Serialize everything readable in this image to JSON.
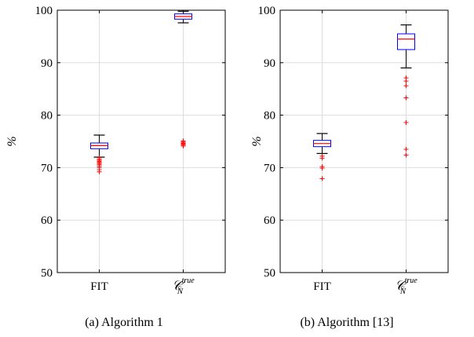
{
  "chart_data": [
    {
      "type": "box",
      "caption": "(a) Algorithm 1",
      "ylabel": "%",
      "ylim": [
        50,
        100
      ],
      "yticks": [
        50,
        60,
        70,
        80,
        90,
        100
      ],
      "categories": [
        "FIT",
        "C_N^true"
      ],
      "category_display": [
        {
          "main": "FIT",
          "sub": "",
          "sup": ""
        },
        {
          "main": "𝒞",
          "sub": "N",
          "sup": "true"
        }
      ],
      "grid": true,
      "boxes": [
        {
          "name": "FIT",
          "whisker_low": 72.0,
          "q1": 73.6,
          "median": 74.2,
          "q3": 74.7,
          "whisker_high": 76.2,
          "outliers": [
            71.9,
            71.6,
            71.4,
            71.2,
            71.0,
            70.8,
            70.6,
            70.3,
            70.0,
            69.6,
            69.2
          ]
        },
        {
          "name": "C_N^true",
          "whisker_low": 97.6,
          "q1": 98.3,
          "median": 98.8,
          "q3": 99.3,
          "whisker_high": 99.8,
          "outliers": [
            75.1,
            74.9,
            74.7,
            74.6,
            74.5,
            74.3,
            74.1
          ]
        }
      ]
    },
    {
      "type": "box",
      "caption": "(b) Algorithm [13]",
      "ylabel": "%",
      "ylim": [
        50,
        100
      ],
      "yticks": [
        50,
        60,
        70,
        80,
        90,
        100
      ],
      "categories": [
        "FIT",
        "C_N^true"
      ],
      "category_display": [
        {
          "main": "FIT",
          "sub": "",
          "sup": ""
        },
        {
          "main": "𝒞",
          "sub": "N",
          "sup": "true"
        }
      ],
      "grid": true,
      "boxes": [
        {
          "name": "FIT",
          "whisker_low": 72.7,
          "q1": 74.0,
          "median": 74.6,
          "q3": 75.2,
          "whisker_high": 76.5,
          "outliers": [
            72.2,
            71.8,
            70.2,
            69.9,
            67.9
          ]
        },
        {
          "name": "C_N^true",
          "whisker_low": 89.0,
          "q1": 92.5,
          "median": 94.5,
          "q3": 95.5,
          "whisker_high": 97.2,
          "outliers": [
            87.1,
            86.5,
            85.6,
            83.3,
            78.6,
            73.5,
            72.4
          ]
        }
      ]
    }
  ],
  "colors": {
    "box": "#0000ff",
    "median": "#ff0000",
    "whisker": "#000000",
    "outlier": "#ff0000",
    "grid": "#dddddd"
  }
}
